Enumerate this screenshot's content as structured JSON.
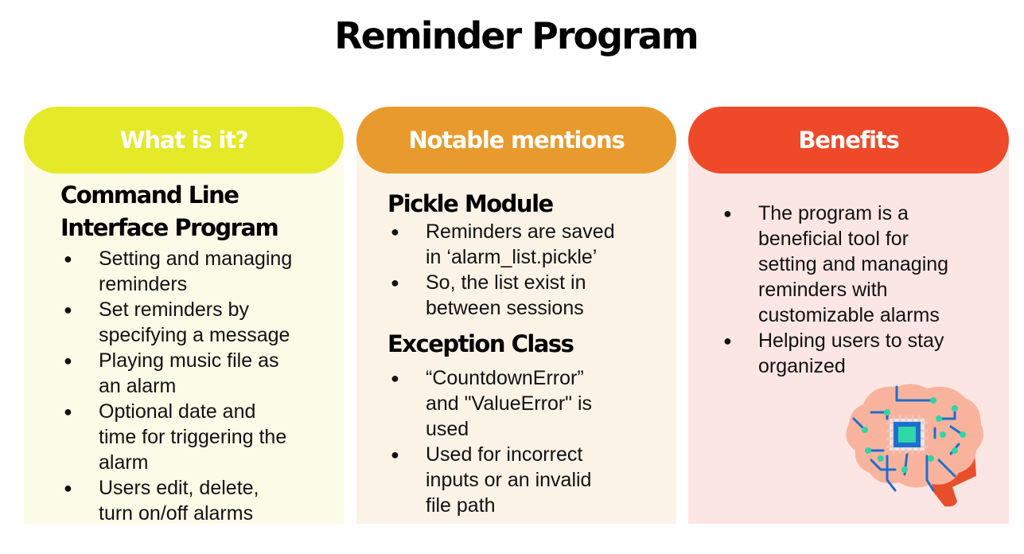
{
  "title": "Reminder Program",
  "columns": [
    {
      "header": "What is it?",
      "sections": [
        {
          "heading_lines": [
            "Command Line",
            "Interface Program"
          ],
          "bullets": [
            [
              "Setting and managing",
              "reminders"
            ],
            [
              "Set reminders by",
              "specifying a message"
            ],
            [
              "Playing music file as",
              "an alarm"
            ],
            [
              "Optional date and",
              "time for triggering the",
              "alarm"
            ],
            [
              "Users edit, delete,",
              "turn on/off alarms"
            ]
          ]
        }
      ]
    },
    {
      "header": "Notable mentions",
      "sections": [
        {
          "heading_lines": [
            "Pickle Module"
          ],
          "bullets": [
            [
              "Reminders are saved",
              "in ‘alarm_list.pickle’"
            ],
            [
              "So, the list exist in",
              "between sessions"
            ]
          ]
        },
        {
          "heading_lines": [
            "Exception Class"
          ],
          "bullets": [
            [
              "“CountdownError”",
              "and \"ValueError\" is",
              "used"
            ],
            [
              "Used for incorrect",
              "inputs or an invalid",
              "file path"
            ]
          ]
        }
      ]
    },
    {
      "header": "Benefits",
      "sections": [
        {
          "heading_lines": [],
          "bullets": [
            [
              "The program is a",
              "beneficial tool for",
              "setting and managing",
              "reminders with",
              "customizable alarms"
            ],
            [
              "Helping users to stay",
              "organized"
            ]
          ]
        }
      ]
    }
  ],
  "bullet_glyph": "●",
  "illustration": {
    "icon": "brain-circuit-icon",
    "colors": {
      "brain": "#f9b39c",
      "stem": "#e94e2a",
      "chip": "#1b6fd1",
      "nodes": "#2fd6a6"
    }
  }
}
